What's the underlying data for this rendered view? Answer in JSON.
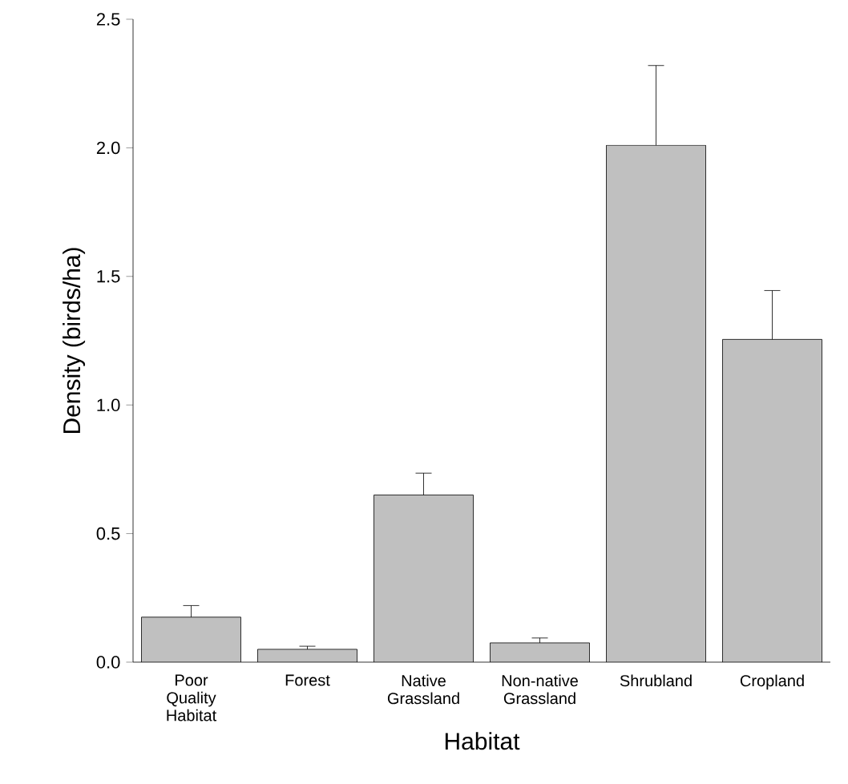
{
  "chart_data": {
    "type": "bar",
    "xlabel": "Habitat",
    "ylabel": "Density (birds/ha)",
    "categories": [
      "Poor Quality Habitat",
      "Forest",
      "Native Grassland",
      "Non-native Grassland",
      "Shrubland",
      "Cropland"
    ],
    "values": [
      0.175,
      0.05,
      0.65,
      0.075,
      2.01,
      1.255
    ],
    "errors": [
      0.045,
      0.012,
      0.085,
      0.019,
      0.31,
      0.19
    ],
    "color": "#c0c0c0",
    "ylim": [
      0,
      2.5
    ],
    "yticks": [
      {
        "value": 0,
        "label": "0.0"
      },
      {
        "value": 0.5,
        "label": "0.5"
      },
      {
        "value": 1,
        "label": "1.0"
      },
      {
        "value": 1.5,
        "label": "1.5"
      },
      {
        "value": 2,
        "label": "2.0"
      },
      {
        "value": 2.5,
        "label": "2.5"
      }
    ]
  }
}
